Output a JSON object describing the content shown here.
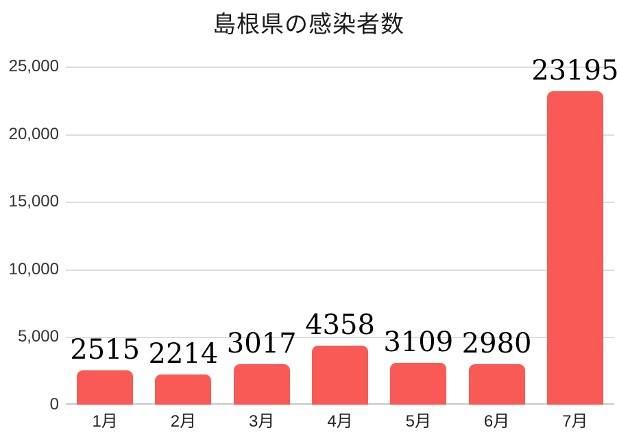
{
  "chart_data": {
    "type": "bar",
    "title": "島根県の感染者数",
    "categories": [
      "1月",
      "2月",
      "3月",
      "4月",
      "5月",
      "6月",
      "7月"
    ],
    "values": [
      2515,
      2214,
      3017,
      4358,
      3109,
      2980,
      23195
    ],
    "data_labels": [
      "2515",
      "2214",
      "3017",
      "4358",
      "3109",
      "2980",
      "23195"
    ],
    "y_ticks": [
      {
        "value": 0,
        "label": "0"
      },
      {
        "value": 5000,
        "label": "5,000"
      },
      {
        "value": 10000,
        "label": "10,000"
      },
      {
        "value": 15000,
        "label": "15,000"
      },
      {
        "value": 20000,
        "label": "20,000"
      },
      {
        "value": 25000,
        "label": "25,000"
      }
    ],
    "ylim": [
      0,
      25000
    ],
    "xlabel": "",
    "ylabel": "",
    "grid": true,
    "legend": false,
    "bar_color": "#FA5A55",
    "grid_color": "#DCDCDC",
    "baseline_color": "#C7C7C7",
    "background_color": "#FFFFFF"
  }
}
